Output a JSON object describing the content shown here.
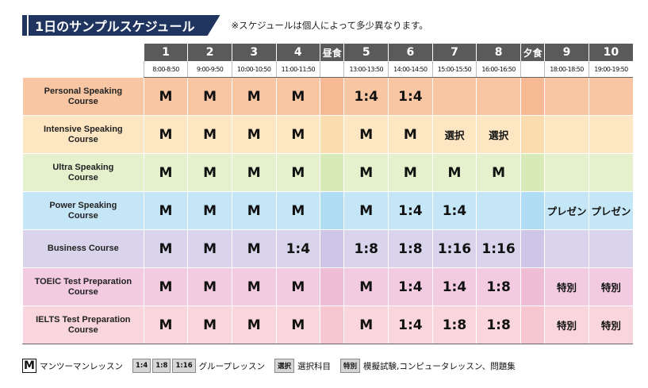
{
  "header": {
    "title": "1日のサンプルスケジュール",
    "note": "※スケジュールは個人によって多少異なります。"
  },
  "columns": [
    {
      "label": "1",
      "time": "8:00-8:50",
      "meal": false
    },
    {
      "label": "2",
      "time": "9:00-9:50",
      "meal": false
    },
    {
      "label": "3",
      "time": "10:00-10:50",
      "meal": false
    },
    {
      "label": "4",
      "time": "11:00-11:50",
      "meal": false
    },
    {
      "label": "昼食",
      "time": "",
      "meal": true
    },
    {
      "label": "5",
      "time": "13:00-13:50",
      "meal": false
    },
    {
      "label": "6",
      "time": "14:00-14:50",
      "meal": false
    },
    {
      "label": "7",
      "time": "15:00-15:50",
      "meal": false
    },
    {
      "label": "8",
      "time": "16:00-16:50",
      "meal": false
    },
    {
      "label": "夕食",
      "time": "",
      "meal": true
    },
    {
      "label": "9",
      "time": "18:00-18:50",
      "meal": false
    },
    {
      "label": "10",
      "time": "19:00-19:50",
      "meal": false
    }
  ],
  "courses": [
    {
      "name": [
        "Personal Speaking",
        "Course"
      ],
      "bg": "#f9c6a4",
      "alt": "#f7b994",
      "cells": [
        "M",
        "M",
        "M",
        "M",
        "",
        "1:4",
        "1:4",
        "",
        "",
        "",
        "",
        ""
      ]
    },
    {
      "name": [
        "Intensive Speaking",
        "Course"
      ],
      "bg": "#fde7c2",
      "alt": "#fbdcae",
      "cells": [
        "M",
        "M",
        "M",
        "M",
        "",
        "M",
        "M",
        "選択",
        "選択",
        "",
        "",
        ""
      ]
    },
    {
      "name": [
        "Ultra Speaking",
        "Course"
      ],
      "bg": "#e4f1cc",
      "alt": "#d8eab8",
      "cells": [
        "M",
        "M",
        "M",
        "M",
        "",
        "M",
        "M",
        "M",
        "M",
        "",
        "",
        ""
      ]
    },
    {
      "name": [
        "Power Speaking",
        "Course"
      ],
      "bg": "#c4e6f7",
      "alt": "#b0ddf3",
      "cells": [
        "M",
        "M",
        "M",
        "M",
        "",
        "M",
        "1:4",
        "1:4",
        "",
        "",
        "プレゼン",
        "プレゼン"
      ]
    },
    {
      "name": [
        "Business Course"
      ],
      "bg": "#d9d4ec",
      "alt": "#cdc6e6",
      "cells": [
        "M",
        "M",
        "M",
        "1:4",
        "",
        "1:8",
        "1:8",
        "1:16",
        "1:16",
        "",
        "",
        ""
      ]
    },
    {
      "name": [
        "TOEIC Test Preparation",
        "Course"
      ],
      "bg": "#f3cbe0",
      "alt": "#efbcd6",
      "cells": [
        "M",
        "M",
        "M",
        "M",
        "",
        "M",
        "1:4",
        "1:4",
        "1:8",
        "",
        "特別",
        "特別"
      ]
    },
    {
      "name": [
        "IELTS Test Preparation",
        "Course"
      ],
      "bg": "#f9d5dd",
      "alt": "#f6c6d1",
      "cells": [
        "M",
        "M",
        "M",
        "M",
        "",
        "M",
        "1:4",
        "1:8",
        "1:8",
        "",
        "特別",
        "特別"
      ]
    }
  ],
  "legend": {
    "m_symbol": "M",
    "m_text": "マンツーマンレッスン",
    "group_boxes": [
      "1:4",
      "1:8",
      "1:16"
    ],
    "group_text": "グループレッスン",
    "elective_box": "選択",
    "elective_text": "選択科目",
    "special_box": "特別",
    "special_text": "模擬試験,コンピュータレッスン、問題集"
  },
  "colors": {
    "title_bg": "#1f3560",
    "header_bg": "#5a5a5a"
  }
}
